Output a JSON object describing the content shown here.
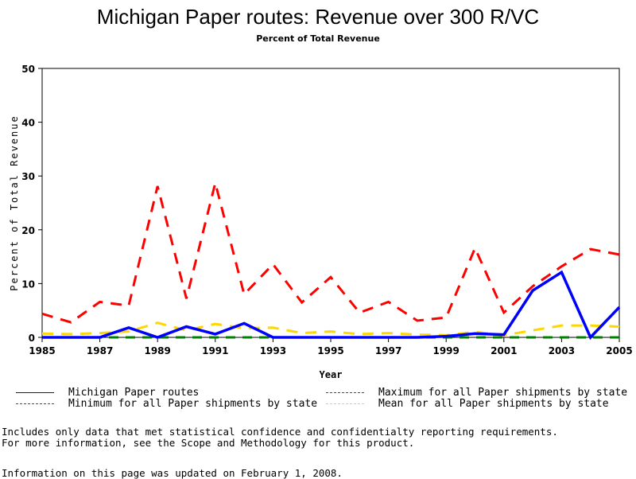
{
  "chart_data": {
    "type": "line",
    "title": "Michigan Paper routes: Revenue over 300 R/VC",
    "subtitle": "Percent of Total Revenue",
    "xlabel": "Year",
    "ylabel": "Percent of Total Revenue",
    "xlim": [
      1985,
      2005
    ],
    "ylim": [
      0,
      50
    ],
    "x_ticks": [
      "1985",
      "1987",
      "1989",
      "1991",
      "1993",
      "1995",
      "1997",
      "1999",
      "2001",
      "2003",
      "2005"
    ],
    "y_ticks": [
      "0",
      "10",
      "20",
      "30",
      "40",
      "50"
    ],
    "grid": false,
    "legend_placement": "bottom",
    "x": [
      1985,
      1986,
      1987,
      1988,
      1989,
      1990,
      1991,
      1992,
      1993,
      1994,
      1995,
      1996,
      1997,
      1998,
      1999,
      2000,
      2001,
      2002,
      2003,
      2004,
      2005
    ],
    "series": [
      {
        "name": "Michigan Paper routes",
        "color": "#0000ff",
        "style": "solid",
        "values": [
          0,
          0,
          0,
          1.8,
          0,
          2.0,
          0.6,
          2.6,
          0,
          0,
          0,
          0,
          0,
          0,
          0.2,
          0.7,
          0.5,
          8.7,
          12.1,
          0,
          5.6
        ]
      },
      {
        "name": "Maximum for all Paper shipments by state",
        "color": "#ff0000",
        "style": "dashed",
        "values": [
          4.4,
          2.8,
          6.6,
          5.9,
          28.1,
          7.2,
          28.7,
          8.0,
          13.6,
          6.5,
          11.2,
          4.6,
          6.6,
          3.1,
          3.7,
          16.6,
          4.6,
          9.5,
          13.2,
          16.4,
          15.4
        ]
      },
      {
        "name": "Minimum for all Paper shipments by state",
        "color": "#008000",
        "style": "dashed",
        "values": [
          0,
          0,
          0,
          0,
          0,
          0,
          0,
          0,
          0,
          0,
          0,
          0,
          0,
          0,
          0,
          0,
          0,
          0,
          0,
          0,
          0
        ]
      },
      {
        "name": "Mean for all Paper shipments by state",
        "color": "#ffd700",
        "style": "dashed",
        "values": [
          0.7,
          0.6,
          0.8,
          1.1,
          2.7,
          1.3,
          2.5,
          1.7,
          1.8,
          0.8,
          1.1,
          0.6,
          0.8,
          0.5,
          0.4,
          1.0,
          0.4,
          1.3,
          2.2,
          2.2,
          2.0
        ]
      }
    ]
  },
  "legend": [
    {
      "label": "Michigan Paper routes",
      "color": "#0000ff",
      "style": "solid"
    },
    {
      "label": "Maximum for all Paper shipments by state",
      "color": "#ff0000",
      "style": "dashed"
    },
    {
      "label": "Minimum for all Paper shipments by state",
      "color": "#008000",
      "style": "dashed"
    },
    {
      "label": "Mean for all Paper shipments by state",
      "color": "#ffd700",
      "style": "dashed"
    }
  ],
  "notes": {
    "line1": "Includes only data that met statistical confidence and confidentialty reporting requirements.",
    "line2": "For more information, see the Scope and Methodology for this product.",
    "updated": "Information on this page was updated on February 1, 2008."
  }
}
